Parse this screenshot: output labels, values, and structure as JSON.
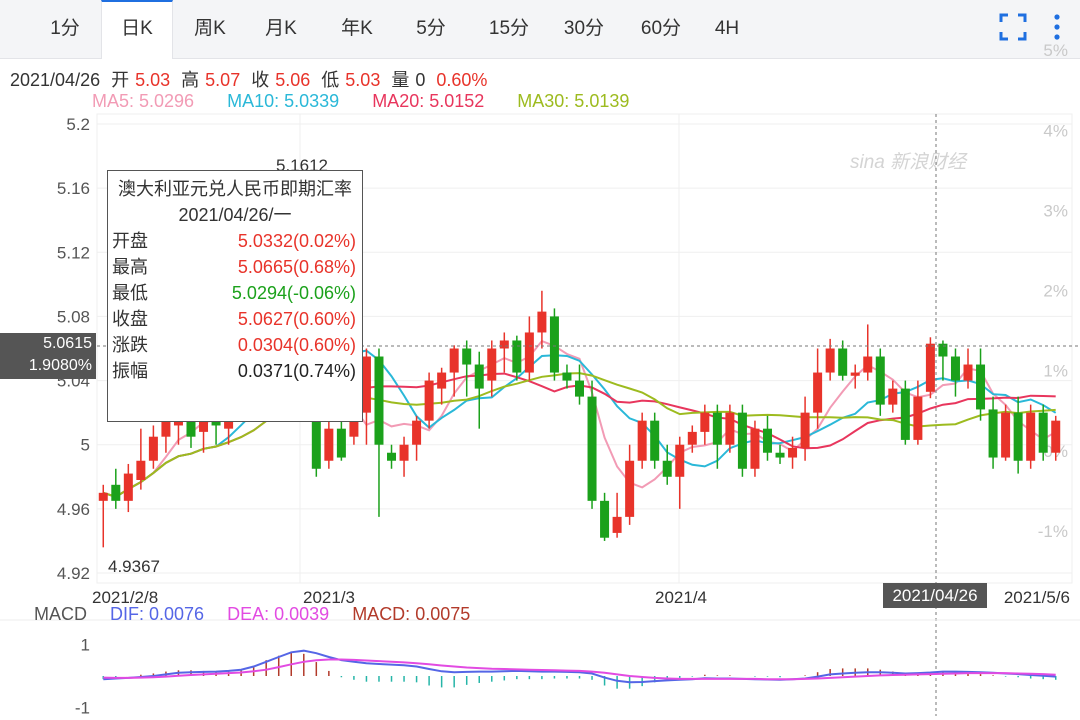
{
  "tabs": [
    {
      "label": "1分"
    },
    {
      "label": "日K"
    },
    {
      "label": "周K"
    },
    {
      "label": "月K"
    },
    {
      "label": "年K"
    },
    {
      "label": "5分"
    },
    {
      "label": "15分"
    },
    {
      "label": "30分"
    },
    {
      "label": "60分"
    },
    {
      "label": "4H"
    }
  ],
  "active_tab": "日K",
  "toolbar": {
    "fullscreen_icon": "fullscreen-icon",
    "more_icon": "more-vertical-icon"
  },
  "stats": {
    "date": "2021/04/26",
    "open_label": "开",
    "open": "5.03",
    "high_label": "高",
    "high": "5.07",
    "close_label": "收",
    "close": "5.06",
    "low_label": "低",
    "low": "5.03",
    "vol_label": "量",
    "vol": "0",
    "change": "0.60%"
  },
  "ma": {
    "ma5": "MA5: 5.0296",
    "ma10": "MA10: 5.0339",
    "ma20": "MA20: 5.0152",
    "ma30": "MA30: 5.0139"
  },
  "macd_legend": {
    "label": "MACD",
    "dif": "DIF: 0.0076",
    "dea": "DEA: 0.0039",
    "macd": "MACD: 0.0075"
  },
  "tooltip": {
    "title": "澳大利亚元兑人民币即期汇率",
    "date": "2021/04/26/一",
    "rows": [
      {
        "k": "开盘",
        "v": "5.0332(0.02%)"
      },
      {
        "k": "最高",
        "v": "5.0665(0.68%)"
      },
      {
        "k": "最低",
        "v": "5.0294(-0.06%)"
      },
      {
        "k": "收盘",
        "v": "5.0627(0.60%)"
      },
      {
        "k": "涨跌",
        "v": "0.0304(0.60%)"
      },
      {
        "k": "振幅",
        "v": "0.0371(0.74%)"
      }
    ]
  },
  "crosshair": {
    "price": "5.0615",
    "pct": "1.9080%",
    "date": "2021/04/26"
  },
  "watermark": "sina 新浪财经",
  "colors": {
    "up": "#e8332a",
    "down": "#1ba11b",
    "ma5": "#f29bb5",
    "ma10": "#2ab8d8",
    "ma20": "#e8365d",
    "ma30": "#9dbb1f",
    "dif": "#5566e6",
    "dea": "#e24be2",
    "macd": "#b23a2a"
  },
  "chart_data": [
    {
      "type": "candlestick",
      "title": "",
      "y_left_ticks": [
        "5.2",
        "5.16",
        "5.12",
        "5.08",
        "5.04",
        "5",
        "4.96",
        "4.92"
      ],
      "y_right_ticks": [
        "5%",
        "4%",
        "3%",
        "2%",
        "1%",
        "0%",
        "-1%"
      ],
      "x_labels": [
        "2021/2/8",
        "2021/3",
        "2021/4",
        "2021/5/6"
      ],
      "ylim": [
        4.92,
        5.2
      ],
      "annotations": [
        {
          "text": "5.1612",
          "value": 5.1612
        },
        {
          "text": "4.9367",
          "value": 4.9367
        }
      ],
      "candles": [
        [
          4.965,
          4.97,
          4.936,
          4.975
        ],
        [
          4.975,
          4.965,
          4.96,
          4.985
        ],
        [
          4.965,
          4.982,
          4.958,
          4.988
        ],
        [
          4.978,
          4.99,
          4.972,
          5.01
        ],
        [
          4.99,
          5.005,
          4.985,
          5.012
        ],
        [
          5.005,
          5.02,
          4.995,
          5.026
        ],
        [
          5.012,
          5.018,
          5.0,
          5.03
        ],
        [
          5.018,
          5.005,
          4.998,
          5.026
        ],
        [
          5.008,
          5.022,
          4.995,
          5.03
        ],
        [
          5.018,
          5.012,
          5.0,
          5.03
        ],
        [
          5.01,
          5.028,
          5.0,
          5.034
        ],
        [
          5.022,
          5.04,
          5.015,
          5.048
        ],
        [
          5.04,
          5.06,
          5.035,
          5.07
        ],
        [
          5.06,
          5.09,
          5.05,
          5.1
        ],
        [
          5.09,
          5.12,
          5.08,
          5.13
        ],
        [
          5.12,
          5.145,
          5.11,
          5.161
        ],
        [
          5.14,
          5.11,
          5.1,
          5.15
        ],
        [
          5.07,
          4.985,
          4.98,
          5.08
        ],
        [
          4.99,
          5.01,
          4.985,
          5.02
        ],
        [
          5.01,
          4.992,
          4.99,
          5.015
        ],
        [
          5.005,
          5.02,
          5.0,
          5.028
        ],
        [
          5.02,
          5.055,
          5.0,
          5.06
        ],
        [
          5.055,
          5.0,
          4.955,
          5.06
        ],
        [
          4.995,
          4.99,
          4.985,
          5.0
        ],
        [
          4.99,
          5.0,
          4.98,
          5.005
        ],
        [
          5.0,
          5.015,
          4.99,
          5.018
        ],
        [
          5.015,
          5.04,
          5.01,
          5.045
        ],
        [
          5.035,
          5.045,
          5.025,
          5.048
        ],
        [
          5.045,
          5.06,
          5.03,
          5.062
        ],
        [
          5.06,
          5.05,
          5.03,
          5.065
        ],
        [
          5.05,
          5.035,
          5.01,
          5.058
        ],
        [
          5.04,
          5.06,
          5.03,
          5.065
        ],
        [
          5.06,
          5.065,
          5.045,
          5.07
        ],
        [
          5.065,
          5.045,
          5.04,
          5.068
        ],
        [
          5.045,
          5.07,
          5.04,
          5.08
        ],
        [
          5.07,
          5.083,
          5.06,
          5.096
        ],
        [
          5.08,
          5.045,
          5.04,
          5.085
        ],
        [
          5.045,
          5.04,
          5.035,
          5.05
        ],
        [
          5.04,
          5.03,
          5.025,
          5.05
        ],
        [
          5.03,
          4.965,
          4.96,
          5.04
        ],
        [
          4.965,
          4.942,
          4.94,
          4.97
        ],
        [
          4.945,
          4.955,
          4.942,
          4.97
        ],
        [
          4.955,
          4.99,
          4.95,
          5.0
        ],
        [
          4.99,
          5.015,
          4.985,
          5.02
        ],
        [
          5.015,
          4.99,
          4.985,
          5.02
        ],
        [
          4.99,
          4.98,
          4.975,
          5.0
        ],
        [
          4.98,
          5.0,
          4.96,
          5.005
        ],
        [
          5.0,
          5.008,
          4.995,
          5.012
        ],
        [
          5.008,
          5.02,
          5.0,
          5.025
        ],
        [
          5.02,
          5.0,
          4.985,
          5.025
        ],
        [
          5.0,
          5.02,
          4.995,
          5.025
        ],
        [
          5.02,
          4.985,
          4.98,
          5.025
        ],
        [
          4.985,
          5.01,
          4.98,
          5.015
        ],
        [
          5.01,
          4.995,
          4.99,
          5.018
        ],
        [
          4.995,
          4.992,
          4.988,
          5.0
        ],
        [
          4.992,
          4.998,
          4.985,
          5.005
        ],
        [
          4.998,
          5.02,
          4.99,
          5.03
        ],
        [
          5.02,
          5.045,
          5.01,
          5.06
        ],
        [
          5.045,
          5.06,
          5.04,
          5.066
        ],
        [
          5.06,
          5.043,
          5.04,
          5.065
        ],
        [
          5.043,
          5.045,
          5.035,
          5.05
        ],
        [
          5.045,
          5.055,
          5.04,
          5.075
        ],
        [
          5.055,
          5.025,
          5.018,
          5.06
        ],
        [
          5.025,
          5.035,
          5.02,
          5.04
        ],
        [
          5.035,
          5.003,
          5.0,
          5.04
        ],
        [
          5.003,
          5.03,
          5.0,
          5.04
        ],
        [
          5.033,
          5.063,
          5.029,
          5.067
        ],
        [
          5.063,
          5.055,
          5.04,
          5.065
        ],
        [
          5.055,
          5.04,
          5.03,
          5.06
        ],
        [
          5.04,
          5.05,
          5.035,
          5.06
        ],
        [
          5.05,
          5.022,
          5.015,
          5.06
        ],
        [
          5.022,
          4.992,
          4.985,
          5.03
        ],
        [
          4.992,
          5.02,
          4.99,
          5.025
        ],
        [
          5.02,
          4.99,
          4.982,
          5.03
        ],
        [
          4.99,
          5.02,
          4.985,
          5.025
        ],
        [
          5.02,
          4.995,
          4.99,
          5.025
        ],
        [
          4.995,
          5.015,
          4.99,
          5.018
        ]
      ]
    },
    {
      "type": "line+bar",
      "title": "MACD",
      "y_left_ticks": [
        "1",
        "-1"
      ],
      "ylim": [
        -1.2,
        1.2
      ],
      "dif": [
        -0.1,
        -0.08,
        -0.06,
        -0.03,
        0.0,
        0.05,
        0.1,
        0.12,
        0.13,
        0.14,
        0.16,
        0.2,
        0.3,
        0.45,
        0.6,
        0.75,
        0.8,
        0.72,
        0.6,
        0.5,
        0.45,
        0.4,
        0.38,
        0.36,
        0.34,
        0.3,
        0.22,
        0.15,
        0.12,
        0.13,
        0.14,
        0.14,
        0.15,
        0.16,
        0.15,
        0.14,
        0.14,
        0.13,
        0.12,
        0.08,
        -0.05,
        -0.15,
        -0.2,
        -0.19,
        -0.16,
        -0.14,
        -0.12,
        -0.1,
        -0.07,
        -0.08,
        -0.08,
        -0.09,
        -0.1,
        -0.11,
        -0.12,
        -0.1,
        -0.08,
        -0.02,
        0.05,
        0.08,
        0.1,
        0.12,
        0.12,
        0.1,
        0.08,
        0.09,
        0.11,
        0.14,
        0.14,
        0.13,
        0.12,
        0.1,
        0.08,
        0.06,
        0.03,
        0.01,
        -0.02
      ],
      "dea": [
        -0.05,
        -0.06,
        -0.06,
        -0.05,
        -0.04,
        -0.02,
        0.01,
        0.03,
        0.05,
        0.07,
        0.09,
        0.11,
        0.15,
        0.2,
        0.28,
        0.37,
        0.45,
        0.5,
        0.52,
        0.52,
        0.51,
        0.49,
        0.47,
        0.45,
        0.43,
        0.4,
        0.37,
        0.33,
        0.3,
        0.27,
        0.25,
        0.23,
        0.22,
        0.21,
        0.2,
        0.19,
        0.18,
        0.17,
        0.16,
        0.14,
        0.1,
        0.05,
        0.0,
        -0.03,
        -0.06,
        -0.08,
        -0.09,
        -0.09,
        -0.09,
        -0.09,
        -0.09,
        -0.09,
        -0.09,
        -0.1,
        -0.1,
        -0.1,
        -0.09,
        -0.08,
        -0.06,
        -0.04,
        -0.02,
        0.0,
        0.02,
        0.03,
        0.04,
        0.05,
        0.06,
        0.07,
        0.08,
        0.09,
        0.09,
        0.09,
        0.09,
        0.08,
        0.07,
        0.06,
        0.04
      ],
      "dif_label": "DIF: 0.0076",
      "dea_label": "DEA: 0.0039",
      "macd_label": "MACD: 0.0075"
    }
  ]
}
